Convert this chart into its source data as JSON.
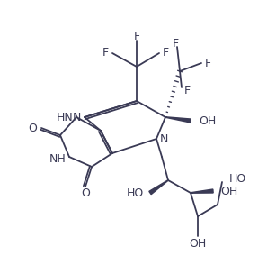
{
  "bg": "#ffffff",
  "lc": "#3a3a55",
  "tc": "#3a3a55",
  "lw": 1.3,
  "fs": 8.5
}
